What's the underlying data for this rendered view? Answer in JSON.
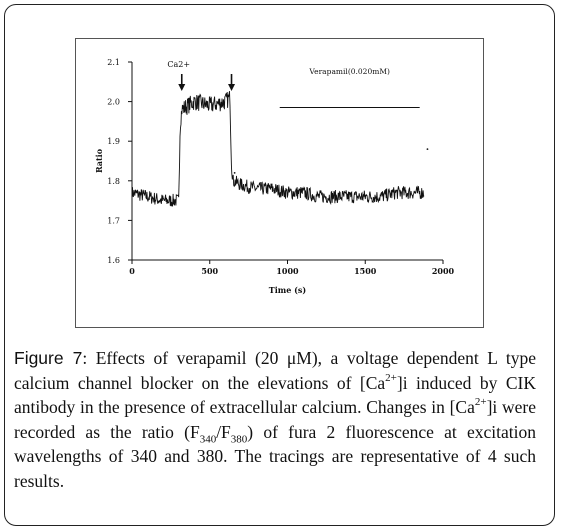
{
  "chart_data": {
    "type": "line",
    "xlabel": "Time (s)",
    "ylabel": "Ratio",
    "xlim": [
      0,
      2000
    ],
    "ylim": [
      1.6,
      2.1
    ],
    "xticks": [
      0,
      500,
      1000,
      1500,
      2000
    ],
    "xtick_labels": [
      "0",
      "500",
      "1000",
      "1500",
      "2000"
    ],
    "yticks": [
      1.6,
      1.7,
      1.8,
      1.9,
      2.0,
      2.1
    ],
    "ytick_labels": [
      "1.6",
      "1.7",
      "1.8",
      "1.9",
      "2.0",
      "2.1"
    ],
    "grid": false,
    "series": [
      {
        "x": [
          0,
          100,
          200,
          300,
          310,
          320,
          400,
          500,
          600,
          630,
          640,
          650,
          700,
          800,
          900,
          1000,
          1100,
          1200,
          1300,
          1400,
          1500,
          1600,
          1700,
          1800,
          1850,
          1880
        ],
        "values": [
          1.77,
          1.76,
          1.75,
          1.75,
          1.94,
          1.98,
          2.0,
          1.99,
          2.0,
          2.01,
          1.84,
          1.8,
          1.79,
          1.78,
          1.78,
          1.77,
          1.77,
          1.76,
          1.76,
          1.76,
          1.76,
          1.76,
          1.77,
          1.77,
          1.77,
          1.77
        ]
      }
    ],
    "annotations": [
      {
        "text": "Ca2+",
        "x": 320
      },
      {
        "text": "Verapamil(0.020mM)",
        "x_start": 950,
        "x_end": 1850,
        "y": 1.985
      }
    ],
    "arrows": [
      {
        "x": 320
      },
      {
        "x": 640
      }
    ]
  },
  "caption": {
    "label": "Figure 7",
    "p1": ": Effects of verapamil (20 μM), a voltage dependent L type calcium channel blocker on the elevations of [Ca",
    "sup1": "2+",
    "p2": "]i induced by CIK antibody in the presence of extracellular calcium. Changes in [Ca",
    "sup2": "2+",
    "p3": "]i were recorded as the ratio (F",
    "sub1": "340",
    "p4": "/F",
    "sub2": "380",
    "p5": ") of fura 2 fluorescence at excitation wavelengths of 340 and 380. The tracings are representative of 4 such results."
  }
}
